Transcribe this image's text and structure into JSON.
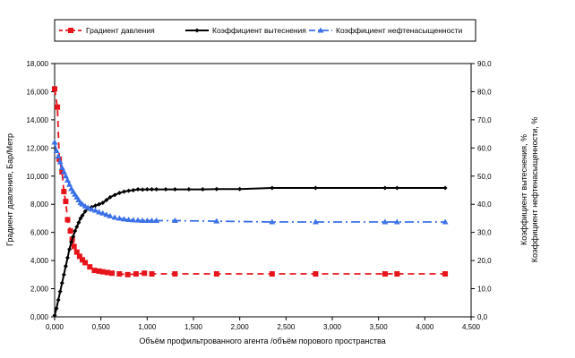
{
  "chart_data": {
    "type": "line",
    "xlabel": "Объём профильтрованного агента /объём порового пространства",
    "ylabel_left": "Градиент давления, Бар/Метр",
    "ylabel_right": [
      "Коэффициент вытеснения, %",
      "Коэффициент нефтенасыщенности, %"
    ],
    "xlim": [
      0,
      4.5
    ],
    "ylim_left": [
      0,
      18
    ],
    "ylim_right": [
      0,
      90
    ],
    "x_ticks": [
      "0,000",
      "0,500",
      "1,000",
      "1,500",
      "2,000",
      "2,500",
      "3,000",
      "3,500",
      "4,000",
      "4,500"
    ],
    "y_left_ticks": [
      "0,000",
      "2,000",
      "4,000",
      "6,000",
      "8,000",
      "10,000",
      "12,000",
      "14,000",
      "16,000",
      "18,000"
    ],
    "y_right_ticks": [
      "0,0",
      "10,0",
      "20,0",
      "30,0",
      "40,0",
      "50,0",
      "60,0",
      "70,0",
      "80,0",
      "90,0"
    ],
    "legend_position": "top",
    "grid": false,
    "series": [
      {
        "name": "Градиент давления",
        "axis": "left",
        "color": "#e8141b",
        "line": "dashed",
        "marker": "square",
        "x": [
          0.0,
          0.03,
          0.05,
          0.08,
          0.1,
          0.12,
          0.14,
          0.17,
          0.19,
          0.21,
          0.24,
          0.27,
          0.3,
          0.33,
          0.38,
          0.43,
          0.48,
          0.52,
          0.57,
          0.62,
          0.7,
          0.79,
          0.88,
          0.97,
          1.05,
          1.3,
          1.75,
          2.35,
          2.82,
          3.57,
          3.7,
          4.22
        ],
        "y": [
          16.2,
          14.9,
          11.2,
          10.3,
          8.9,
          8.2,
          6.9,
          6.1,
          5.5,
          5.0,
          4.6,
          4.3,
          4.05,
          3.85,
          3.55,
          3.3,
          3.25,
          3.2,
          3.15,
          3.1,
          3.05,
          3.0,
          3.05,
          3.1,
          3.05,
          3.05,
          3.05,
          3.05,
          3.05,
          3.05,
          3.05,
          3.05
        ]
      },
      {
        "name": "Коэффициент вытеснения",
        "axis": "right",
        "color": "#000000",
        "line": "solid",
        "marker": "diamond",
        "x": [
          0.0,
          0.02,
          0.04,
          0.06,
          0.08,
          0.1,
          0.12,
          0.14,
          0.16,
          0.18,
          0.2,
          0.22,
          0.24,
          0.26,
          0.28,
          0.3,
          0.33,
          0.36,
          0.4,
          0.44,
          0.48,
          0.52,
          0.56,
          0.6,
          0.65,
          0.7,
          0.75,
          0.8,
          0.85,
          0.9,
          0.95,
          1.0,
          1.05,
          1.1,
          1.2,
          1.3,
          1.45,
          1.6,
          1.75,
          2.0,
          2.35,
          2.82,
          3.57,
          3.7,
          4.22
        ],
        "y": [
          0.5,
          3.0,
          6.0,
          9.0,
          12.0,
          15.0,
          18.0,
          21.0,
          24.0,
          26.5,
          28.5,
          30.5,
          32.0,
          33.5,
          35.0,
          36.0,
          37.5,
          38.5,
          39.0,
          39.5,
          40.0,
          40.5,
          41.5,
          42.5,
          43.3,
          44.0,
          44.5,
          44.8,
          45.0,
          45.3,
          45.2,
          45.3,
          45.3,
          45.3,
          45.3,
          45.3,
          45.3,
          45.3,
          45.4,
          45.4,
          45.8,
          45.8,
          45.8,
          45.8,
          45.8
        ]
      },
      {
        "name": "Коэффициент нефтенасыщенности",
        "axis": "right",
        "color": "#3b70e8",
        "line": "dashdot",
        "marker": "triangle",
        "x": [
          0.0,
          0.02,
          0.04,
          0.06,
          0.08,
          0.1,
          0.12,
          0.14,
          0.16,
          0.18,
          0.2,
          0.22,
          0.24,
          0.26,
          0.28,
          0.3,
          0.33,
          0.36,
          0.4,
          0.44,
          0.48,
          0.52,
          0.56,
          0.6,
          0.65,
          0.7,
          0.75,
          0.8,
          0.85,
          0.9,
          0.95,
          1.0,
          1.05,
          1.1,
          1.3,
          1.75,
          2.35,
          2.82,
          3.57,
          3.7,
          4.22
        ],
        "y": [
          62.0,
          59.0,
          57.0,
          55.0,
          53.0,
          51.5,
          50.0,
          48.5,
          47.0,
          45.5,
          44.5,
          43.5,
          42.5,
          41.5,
          40.5,
          40.0,
          39.3,
          38.8,
          38.2,
          37.8,
          37.2,
          36.8,
          36.3,
          35.8,
          35.3,
          35.0,
          34.7,
          34.5,
          34.4,
          34.3,
          34.2,
          34.2,
          34.2,
          34.2,
          34.2,
          34.0,
          33.7,
          33.7,
          33.7,
          33.7,
          33.7
        ]
      }
    ]
  }
}
